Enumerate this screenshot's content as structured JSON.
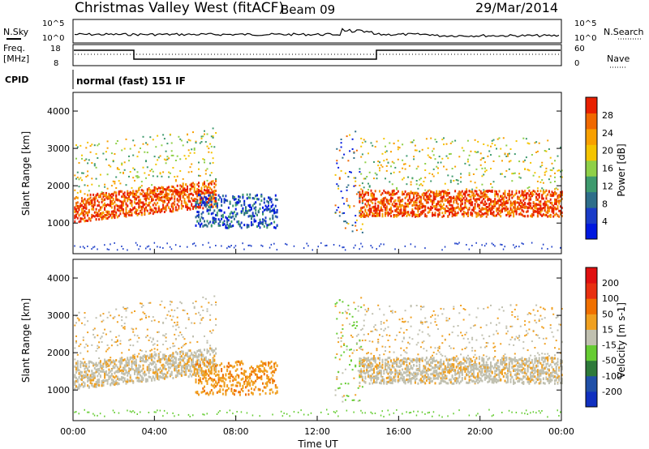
{
  "header": {
    "title": "Christmas Valley West (fitACF)",
    "beam": "Beam 09",
    "date": "29/Mar/2014"
  },
  "top_panels": {
    "nsky_label": "N.Sky",
    "nsky_ticks": [
      "10^5",
      "10^0"
    ],
    "nsearch_label": "N.Search",
    "nsearch_ticks": [
      "10^5",
      "10^0"
    ],
    "freq_label_1": "Freq.",
    "freq_label_2": "[MHz]",
    "freq_ticks": [
      "18",
      "8"
    ],
    "nave_label": "Nave",
    "nave_ticks": [
      "60",
      "0"
    ],
    "cpid_label": "CPID",
    "cpid_value": "normal (fast) 151 IF"
  },
  "chart_data": [
    {
      "type": "heatmap",
      "panel": "power",
      "ylabel": "Slant Range [km]",
      "y_ticks": [
        "4000",
        "3000",
        "2000",
        "1000"
      ],
      "ylim": [
        180,
        4500
      ],
      "xlim_hours": [
        0,
        24
      ],
      "colorbar_label": "Power [dB]",
      "colorbar_ticks": [
        "28",
        "24",
        "20",
        "16",
        "12",
        "8",
        "4"
      ],
      "colors": [
        "#0018e0",
        "#1a3cc8",
        "#2e6e8a",
        "#3e9a6e",
        "#8fd048",
        "#f4c400",
        "#f8a000",
        "#f06800",
        "#e82000"
      ],
      "echo_regions": [
        {
          "start_hour": 0.0,
          "end_hour": 7.0,
          "range_min": 1000,
          "range_max": 3300,
          "band": "F-region, strong (~24-30 dB)"
        },
        {
          "start_hour": 5.7,
          "end_hour": 10.0,
          "range_min": 700,
          "range_max": 1800,
          "band": "ionospheric, weak (~4-12 dB)"
        },
        {
          "start_hour": 12.8,
          "end_hour": 14.0,
          "range_min": 600,
          "range_max": 3500,
          "band": "mixed"
        },
        {
          "start_hour": 14.0,
          "end_hour": 24.0,
          "range_min": 1000,
          "range_max": 3200,
          "band": "F-region, strong (~24-30 dB)"
        }
      ]
    },
    {
      "type": "heatmap",
      "panel": "velocity",
      "ylabel": "Slant Range [km]",
      "y_ticks": [
        "4000",
        "3000",
        "2000",
        "1000"
      ],
      "ylim": [
        180,
        4500
      ],
      "xlim_hours": [
        0,
        24
      ],
      "colorbar_label": "Velocity [m s-1]",
      "colorbar_ticks": [
        "200",
        "100",
        "50",
        "15",
        "-15",
        "-50",
        "-100",
        "-200"
      ],
      "colors": [
        "#1030c0",
        "#2050a8",
        "#2e7a3a",
        "#66cc33",
        "#c0c0b0",
        "#f0a020",
        "#f07000",
        "#e83010",
        "#e01010"
      ],
      "x_ticks": [
        "00:00",
        "04:00",
        "08:00",
        "12:00",
        "16:00",
        "20:00",
        "00:00"
      ],
      "xlabel": "Time UT"
    }
  ]
}
